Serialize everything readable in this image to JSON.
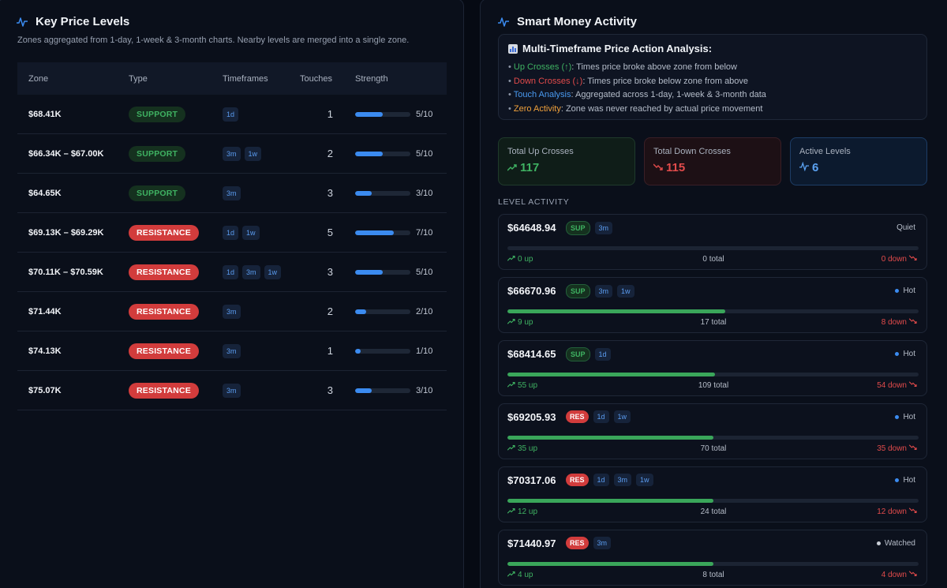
{
  "left": {
    "title": "Key Price Levels",
    "subtitle": "Zones aggregated from 1-day, 1-week & 3-month charts. Nearby levels are merged into a single zone.",
    "headers": {
      "zone": "Zone",
      "type": "Type",
      "timeframes": "Timeframes",
      "touches": "Touches",
      "strength": "Strength"
    },
    "rows": [
      {
        "zone": "$68.41K",
        "type": "SUPPORT",
        "tfs": [
          "1d"
        ],
        "touches": "1",
        "strength": 5,
        "strength_label": "5/10"
      },
      {
        "zone": "$66.34K – $67.00K",
        "type": "SUPPORT",
        "tfs": [
          "3m",
          "1w"
        ],
        "touches": "2",
        "strength": 5,
        "strength_label": "5/10"
      },
      {
        "zone": "$64.65K",
        "type": "SUPPORT",
        "tfs": [
          "3m"
        ],
        "touches": "3",
        "strength": 3,
        "strength_label": "3/10"
      },
      {
        "zone": "$69.13K – $69.29K",
        "type": "RESISTANCE",
        "tfs": [
          "1d",
          "1w"
        ],
        "touches": "5",
        "strength": 7,
        "strength_label": "7/10"
      },
      {
        "zone": "$70.11K – $70.59K",
        "type": "RESISTANCE",
        "tfs": [
          "1d",
          "3m",
          "1w"
        ],
        "touches": "3",
        "strength": 5,
        "strength_label": "5/10"
      },
      {
        "zone": "$71.44K",
        "type": "RESISTANCE",
        "tfs": [
          "3m"
        ],
        "touches": "2",
        "strength": 2,
        "strength_label": "2/10"
      },
      {
        "zone": "$74.13K",
        "type": "RESISTANCE",
        "tfs": [
          "3m"
        ],
        "touches": "1",
        "strength": 1,
        "strength_label": "1/10"
      },
      {
        "zone": "$75.07K",
        "type": "RESISTANCE",
        "tfs": [
          "3m"
        ],
        "touches": "3",
        "strength": 3,
        "strength_label": "3/10"
      }
    ]
  },
  "right": {
    "title": "Smart Money Activity",
    "analysis": {
      "title": "Multi-Timeframe Price Action Analysis:",
      "lines": [
        {
          "key": "Up Crosses (↑)",
          "text": ": Times price broke above zone from below",
          "color": "green"
        },
        {
          "key": "Down Crosses (↓)",
          "text": ": Times price broke below zone from above",
          "color": "red"
        },
        {
          "key": "Touch Analysis",
          "text": ": Aggregated across 1-day, 1-week & 3-month data",
          "color": "blue"
        },
        {
          "key": "Zero Activity",
          "text": ": Zone was never reached by actual price movement",
          "color": "orange"
        }
      ]
    },
    "stats": {
      "up": {
        "label": "Total Up Crosses",
        "value": "117"
      },
      "down": {
        "label": "Total Down Crosses",
        "value": "115"
      },
      "active": {
        "label": "Active Levels",
        "value": "6"
      }
    },
    "section_label": "LEVEL ACTIVITY",
    "levels": [
      {
        "price": "$64648.94",
        "type": "SUP",
        "tfs": [
          "3m"
        ],
        "status": "Quiet",
        "status_dot": "",
        "fill": 0,
        "up": "0 up",
        "total": "0 total",
        "down": "0 down"
      },
      {
        "price": "$66670.96",
        "type": "SUP",
        "tfs": [
          "3m",
          "1w"
        ],
        "status": "Hot",
        "status_dot": "#3b8bf0",
        "fill": 0.53,
        "up": "9 up",
        "total": "17 total",
        "down": "8 down"
      },
      {
        "price": "$68414.65",
        "type": "SUP",
        "tfs": [
          "1d"
        ],
        "status": "Hot",
        "status_dot": "#3b8bf0",
        "fill": 0.505,
        "up": "55 up",
        "total": "109 total",
        "down": "54 down"
      },
      {
        "price": "$69205.93",
        "type": "RES",
        "tfs": [
          "1d",
          "1w"
        ],
        "status": "Hot",
        "status_dot": "#3b8bf0",
        "fill": 0.5,
        "up": "35 up",
        "total": "70 total",
        "down": "35 down"
      },
      {
        "price": "$70317.06",
        "type": "RES",
        "tfs": [
          "1d",
          "3m",
          "1w"
        ],
        "status": "Hot",
        "status_dot": "#3b8bf0",
        "fill": 0.5,
        "up": "12 up",
        "total": "24 total",
        "down": "12 down"
      },
      {
        "price": "$71440.97",
        "type": "RES",
        "tfs": [
          "3m"
        ],
        "status": "Watched",
        "status_dot": "#c9ced6",
        "fill": 0.5,
        "up": "4 up",
        "total": "8 total",
        "down": "4 down"
      }
    ]
  },
  "colors": {
    "support": "#3fb262",
    "resistance": "#d23c3c",
    "accent": "#3b8bf0"
  }
}
